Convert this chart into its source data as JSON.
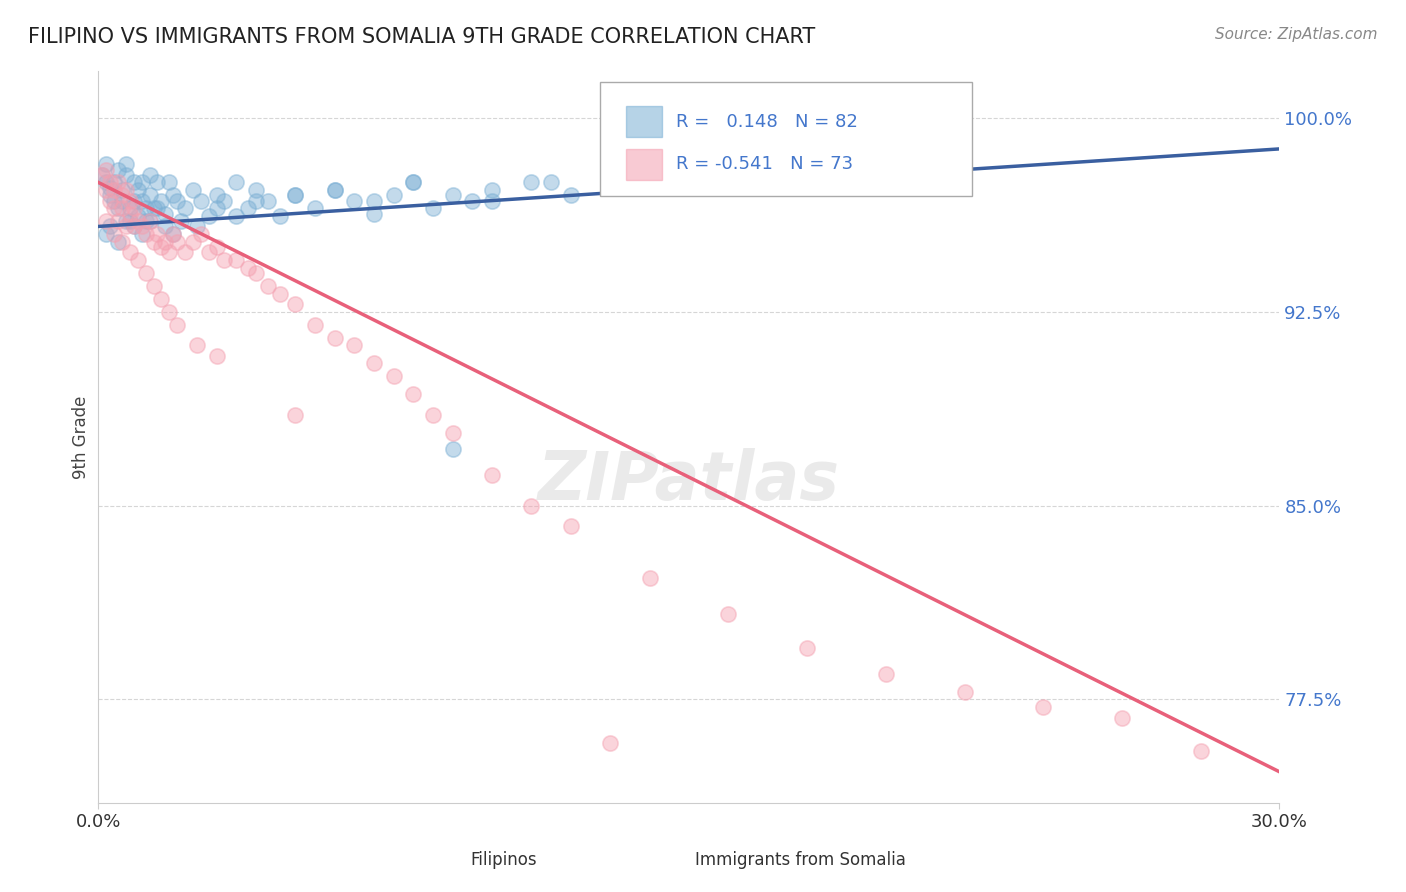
{
  "title": "FILIPINO VS IMMIGRANTS FROM SOMALIA 9TH GRADE CORRELATION CHART",
  "source": "Source: ZipAtlas.com",
  "ylabel": "9th Grade",
  "xmin": 0.0,
  "xmax": 0.3,
  "ymin": 0.735,
  "ymax": 1.018,
  "yticks": [
    0.775,
    0.85,
    0.925,
    1.0
  ],
  "ytick_labels": [
    "77.5%",
    "85.0%",
    "92.5%",
    "100.0%"
  ],
  "blue_R": 0.148,
  "blue_N": 82,
  "pink_R": -0.541,
  "pink_N": 73,
  "blue_color": "#7BAFD4",
  "pink_color": "#F4A0B0",
  "blue_line_color": "#3A5FA0",
  "pink_line_color": "#E8607A",
  "legend_label_blue": "Filipinos",
  "legend_label_pink": "Immigrants from Somalia",
  "watermark": "ZIPatlas",
  "blue_trend_y0": 0.958,
  "blue_trend_y1": 0.988,
  "pink_trend_y0": 0.975,
  "pink_trend_y1": 0.747,
  "blue_scatter_x": [
    0.001,
    0.002,
    0.002,
    0.003,
    0.003,
    0.004,
    0.004,
    0.005,
    0.005,
    0.006,
    0.006,
    0.007,
    0.007,
    0.008,
    0.008,
    0.009,
    0.009,
    0.01,
    0.01,
    0.011,
    0.011,
    0.012,
    0.012,
    0.013,
    0.013,
    0.014,
    0.015,
    0.016,
    0.017,
    0.018,
    0.019,
    0.02,
    0.022,
    0.024,
    0.026,
    0.028,
    0.03,
    0.032,
    0.035,
    0.038,
    0.04,
    0.043,
    0.046,
    0.05,
    0.055,
    0.06,
    0.065,
    0.07,
    0.075,
    0.08,
    0.085,
    0.09,
    0.095,
    0.1,
    0.11,
    0.12,
    0.13,
    0.002,
    0.003,
    0.005,
    0.007,
    0.009,
    0.011,
    0.013,
    0.015,
    0.017,
    0.019,
    0.021,
    0.025,
    0.03,
    0.035,
    0.04,
    0.05,
    0.06,
    0.07,
    0.08,
    0.09,
    0.1,
    0.115,
    0.14,
    0.16,
    0.2
  ],
  "blue_scatter_y": [
    0.978,
    0.982,
    0.975,
    0.973,
    0.97,
    0.975,
    0.968,
    0.98,
    0.965,
    0.972,
    0.968,
    0.982,
    0.978,
    0.965,
    0.96,
    0.975,
    0.968,
    0.972,
    0.962,
    0.975,
    0.968,
    0.965,
    0.96,
    0.978,
    0.97,
    0.965,
    0.975,
    0.968,
    0.963,
    0.975,
    0.97,
    0.968,
    0.965,
    0.972,
    0.968,
    0.962,
    0.97,
    0.968,
    0.975,
    0.965,
    0.972,
    0.968,
    0.962,
    0.97,
    0.965,
    0.972,
    0.968,
    0.963,
    0.97,
    0.975,
    0.965,
    0.97,
    0.968,
    0.972,
    0.975,
    0.97,
    0.978,
    0.955,
    0.958,
    0.952,
    0.96,
    0.958,
    0.955,
    0.96,
    0.965,
    0.958,
    0.955,
    0.96,
    0.958,
    0.965,
    0.962,
    0.968,
    0.97,
    0.972,
    0.968,
    0.975,
    0.872,
    0.968,
    0.975,
    0.98,
    0.985,
    0.99
  ],
  "pink_scatter_x": [
    0.001,
    0.002,
    0.002,
    0.003,
    0.003,
    0.004,
    0.004,
    0.005,
    0.005,
    0.006,
    0.006,
    0.007,
    0.007,
    0.008,
    0.008,
    0.009,
    0.009,
    0.01,
    0.011,
    0.012,
    0.013,
    0.014,
    0.015,
    0.016,
    0.017,
    0.018,
    0.019,
    0.02,
    0.022,
    0.024,
    0.026,
    0.028,
    0.03,
    0.032,
    0.035,
    0.038,
    0.04,
    0.043,
    0.046,
    0.05,
    0.055,
    0.06,
    0.065,
    0.07,
    0.075,
    0.08,
    0.085,
    0.09,
    0.1,
    0.11,
    0.12,
    0.14,
    0.16,
    0.18,
    0.2,
    0.22,
    0.24,
    0.26,
    0.002,
    0.004,
    0.006,
    0.008,
    0.01,
    0.012,
    0.014,
    0.016,
    0.018,
    0.02,
    0.025,
    0.03,
    0.05,
    0.28,
    0.13
  ],
  "pink_scatter_y": [
    0.978,
    0.98,
    0.972,
    0.975,
    0.968,
    0.972,
    0.965,
    0.975,
    0.96,
    0.97,
    0.965,
    0.972,
    0.958,
    0.968,
    0.963,
    0.965,
    0.958,
    0.96,
    0.958,
    0.955,
    0.96,
    0.952,
    0.955,
    0.95,
    0.952,
    0.948,
    0.955,
    0.952,
    0.948,
    0.952,
    0.955,
    0.948,
    0.95,
    0.945,
    0.945,
    0.942,
    0.94,
    0.935,
    0.932,
    0.928,
    0.92,
    0.915,
    0.912,
    0.905,
    0.9,
    0.893,
    0.885,
    0.878,
    0.862,
    0.85,
    0.842,
    0.822,
    0.808,
    0.795,
    0.785,
    0.778,
    0.772,
    0.768,
    0.96,
    0.955,
    0.952,
    0.948,
    0.945,
    0.94,
    0.935,
    0.93,
    0.925,
    0.92,
    0.912,
    0.908,
    0.885,
    0.755,
    0.758
  ]
}
